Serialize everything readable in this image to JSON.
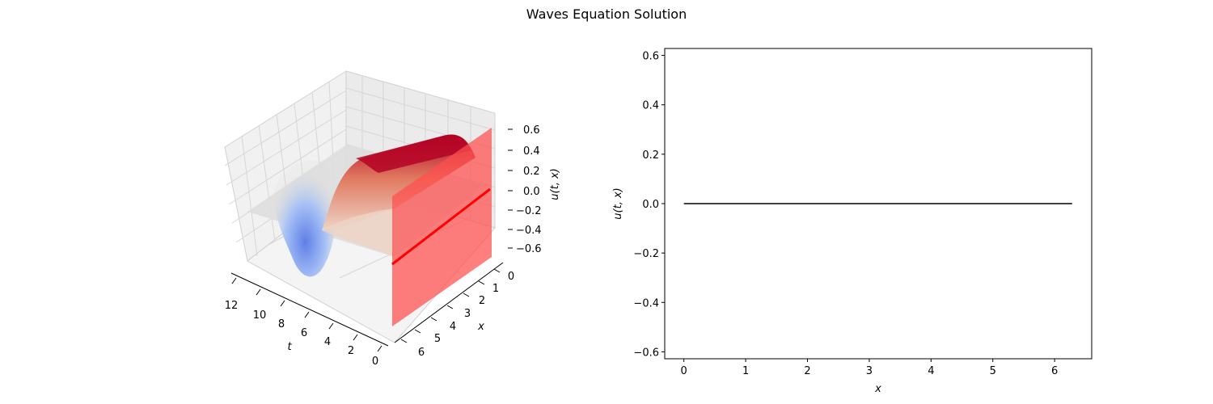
{
  "figure": {
    "title": "Waves Equation Solution"
  },
  "chart_data": [
    {
      "type": "surface",
      "xlabel": "t",
      "ylabel": "x",
      "zlabel": "u(t, x)",
      "t_ticks": [
        "12",
        "10",
        "8",
        "6",
        "4",
        "2",
        "0"
      ],
      "x_ticks": [
        "0",
        "1",
        "2",
        "3",
        "4",
        "5",
        "6"
      ],
      "z_ticks": [
        "0.6",
        "0.4",
        "0.2",
        "0.0",
        "−0.2",
        "−0.4",
        "−0.6"
      ],
      "t_range": [
        0,
        12.6
      ],
      "x_range": [
        0,
        6.28
      ],
      "z_range": [
        -0.6,
        0.6
      ],
      "colormap": "coolwarm",
      "highlight": {
        "plane_t": 0,
        "plane_color": "#ff4d4d",
        "curve_color": "#ff0000",
        "curve_u": 0
      },
      "grid": true
    },
    {
      "type": "line",
      "xlabel": "x",
      "ylabel": "u(t, x)",
      "x_ticks": [
        "0",
        "1",
        "2",
        "3",
        "4",
        "5",
        "6"
      ],
      "y_ticks": [
        "0.6",
        "0.4",
        "0.2",
        "0.0",
        "−0.2",
        "−0.4",
        "−0.6"
      ],
      "xlim": [
        -0.31,
        6.6
      ],
      "ylim": [
        -0.628,
        0.628
      ],
      "grid": false,
      "series": [
        {
          "x": [
            0,
            6.2832
          ],
          "values": [
            0,
            0
          ],
          "color": "#000000"
        }
      ]
    }
  ]
}
